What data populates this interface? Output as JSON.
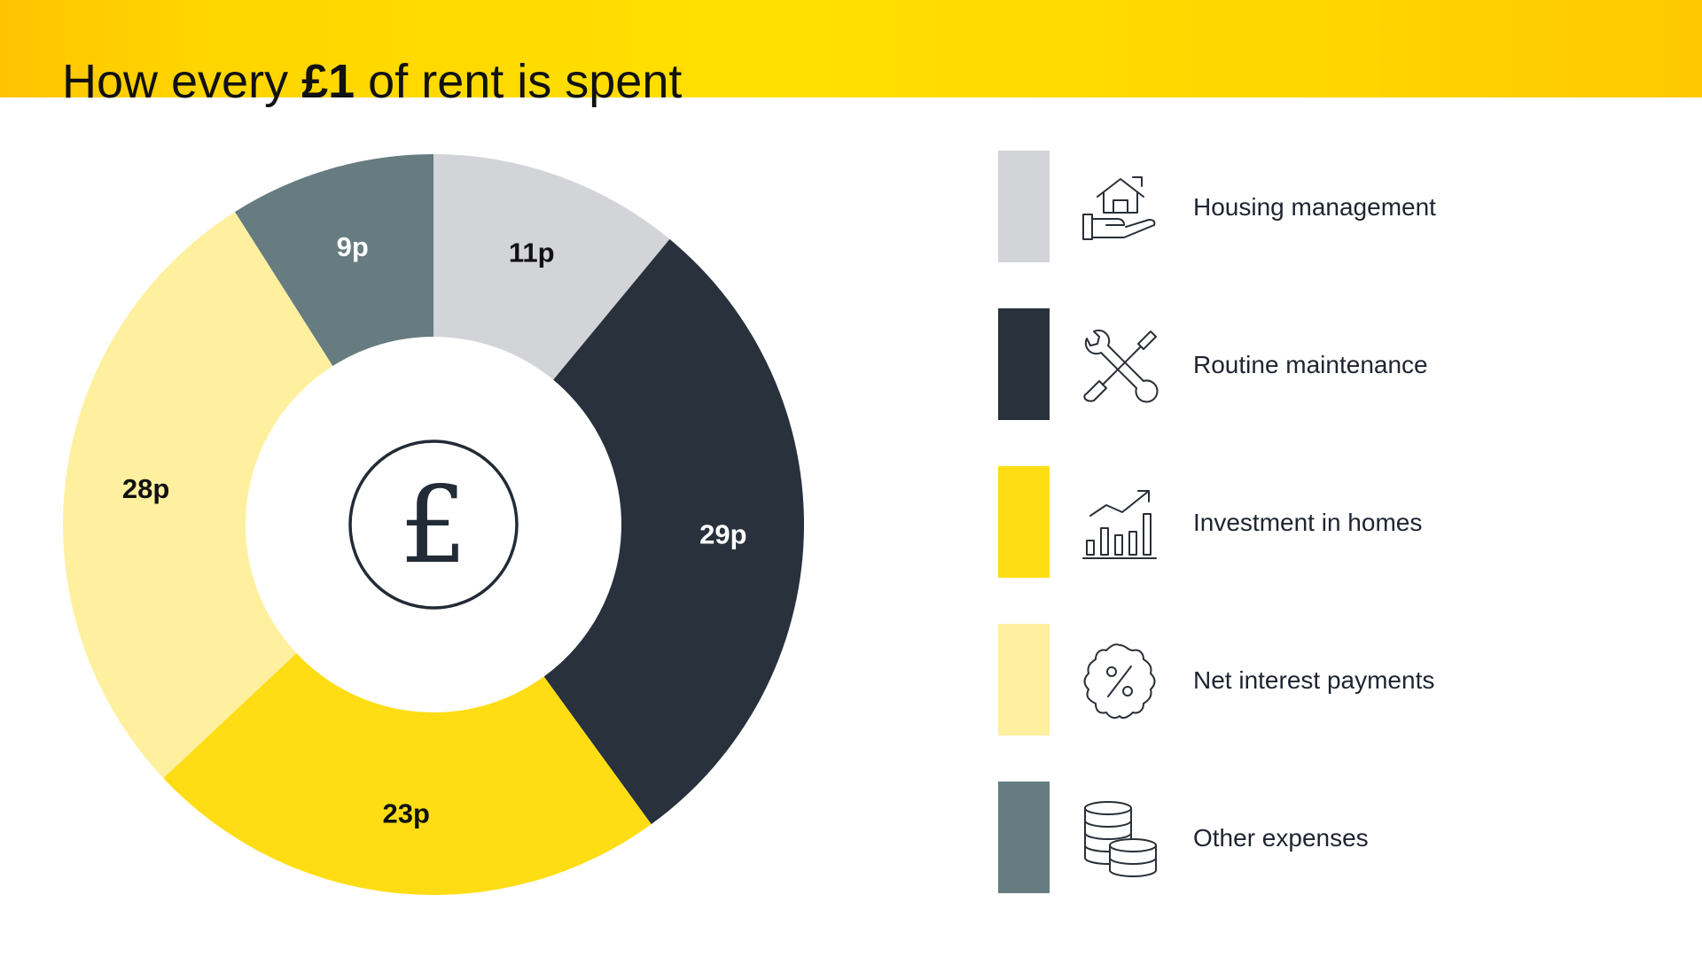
{
  "header": {
    "title_before": "How every ",
    "title_bold": "£1",
    "title_after": " of rent is spent"
  },
  "center_symbol": "£",
  "chart_data": {
    "type": "pie",
    "variant": "donut",
    "title": "How every £1 of rent is spent",
    "unit": "p",
    "total": 100,
    "start": "12 o'clock",
    "direction": "clockwise",
    "slices": [
      {
        "label": "Housing management",
        "value": 11,
        "data_label": "11p",
        "color": "#d3d4d8",
        "label_color": "#111111"
      },
      {
        "label": "Routine maintenance",
        "value": 29,
        "data_label": "29p",
        "color": "#28313c",
        "label_color": "#ffffff"
      },
      {
        "label": "Investment in homes",
        "value": 23,
        "data_label": "23p",
        "color": "#ffdd14",
        "label_color": "#111111"
      },
      {
        "label": "Net interest payments",
        "value": 28,
        "data_label": "28p",
        "color": "#fff0a0",
        "label_color": "#111111"
      },
      {
        "label": "Other expenses",
        "value": 9,
        "data_label": "9p",
        "color": "#667c80",
        "label_color": "#ffffff"
      }
    ],
    "legend": "right"
  },
  "legend": {
    "items": [
      {
        "label": "Housing management",
        "icon": "hand-house-icon",
        "color": "#d3d4d8"
      },
      {
        "label": "Routine maintenance",
        "icon": "tools-icon",
        "color": "#28313c"
      },
      {
        "label": "Investment in homes",
        "icon": "growth-chart-icon",
        "color": "#ffdd14"
      },
      {
        "label": "Net interest payments",
        "icon": "percent-badge-icon",
        "color": "#fff0a0"
      },
      {
        "label": "Other expenses",
        "icon": "coin-stack-icon",
        "color": "#667c80"
      }
    ]
  }
}
